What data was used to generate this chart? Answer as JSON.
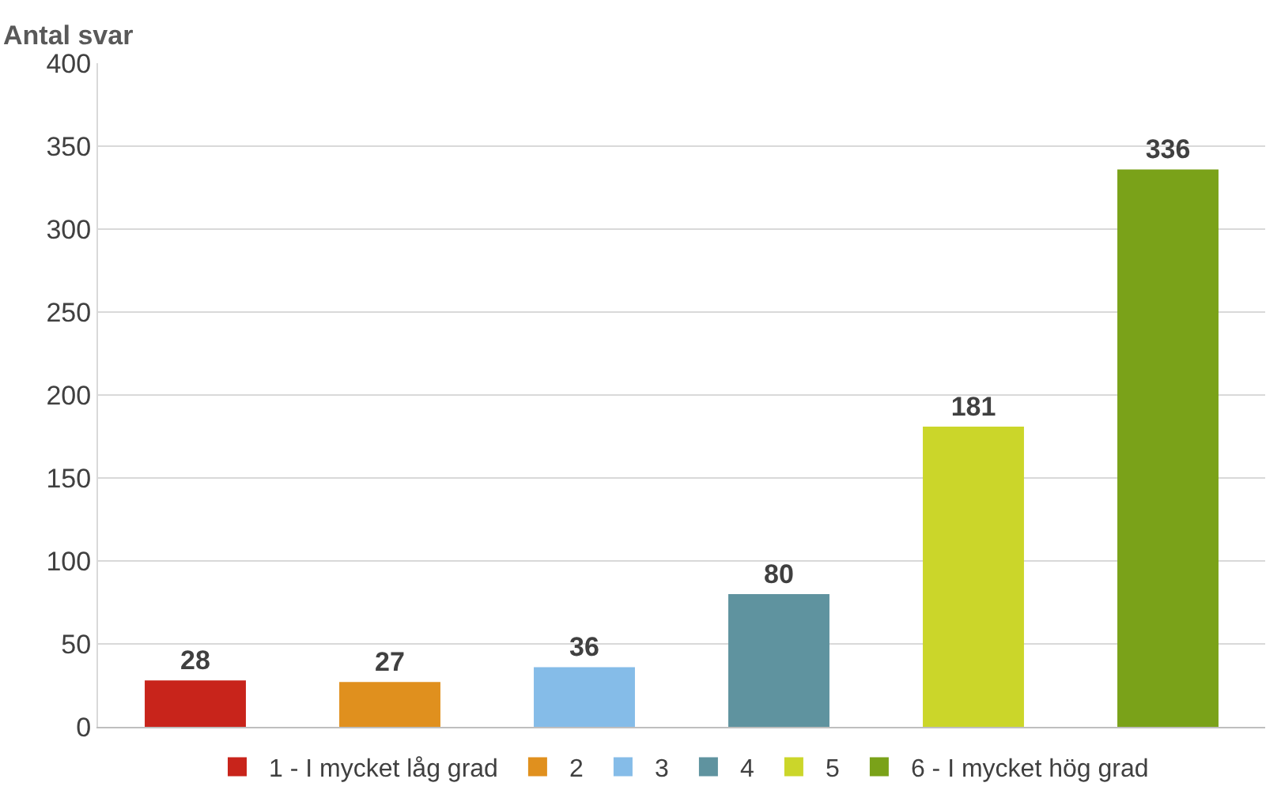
{
  "chart_data": {
    "type": "bar",
    "ylabel": "Antal svar",
    "categories": [
      null,
      null,
      null,
      null,
      null,
      null
    ],
    "series": [
      {
        "name": "1 - I mycket låg grad",
        "color": "#c8241b",
        "values": [
          28,
          null,
          null,
          null,
          null,
          null
        ]
      },
      {
        "name": "2",
        "color": "#e0901e",
        "values": [
          null,
          27,
          null,
          null,
          null,
          null
        ]
      },
      {
        "name": "3",
        "color": "#85bce8",
        "values": [
          null,
          null,
          36,
          null,
          null,
          null
        ]
      },
      {
        "name": "4",
        "color": "#5f939f",
        "values": [
          null,
          null,
          null,
          80,
          null,
          null
        ]
      },
      {
        "name": "5",
        "color": "#cbd62a",
        "values": [
          null,
          null,
          null,
          null,
          181,
          null
        ]
      },
      {
        "name": "6 - I mycket hög grad",
        "color": "#7aa219",
        "values": [
          null,
          null,
          null,
          null,
          null,
          336
        ]
      }
    ],
    "ylim": [
      0,
      400
    ],
    "yticks": [
      0,
      50,
      100,
      150,
      200,
      250,
      300,
      350,
      400
    ],
    "grid": "y",
    "legend": "bottom",
    "data_labels": true
  }
}
